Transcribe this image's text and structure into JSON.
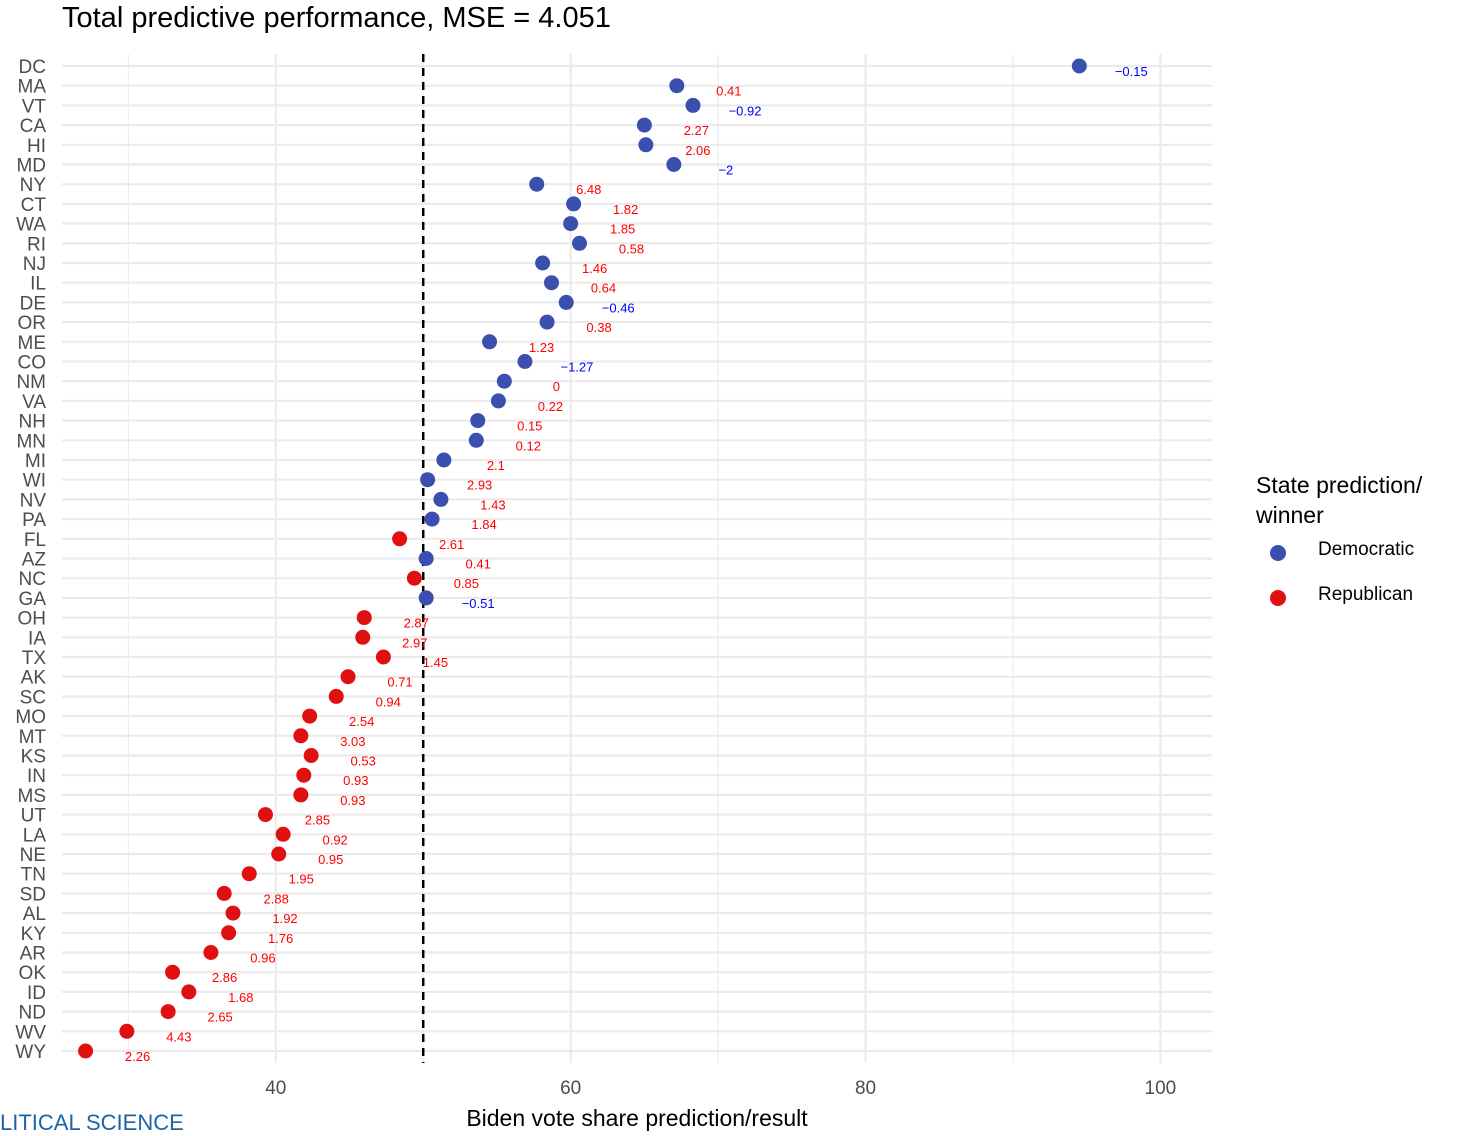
{
  "chart_data": {
    "type": "scatter",
    "title": "Total predictive performance, MSE = 4.051",
    "xlabel": "Biden vote share prediction/result",
    "ylabel": "",
    "xlim": [
      25.5,
      103.5
    ],
    "xticks": [
      40,
      60,
      80,
      100
    ],
    "reference_line": {
      "x": 50,
      "style": "dashed"
    },
    "grid": true,
    "legend": {
      "title": "State prediction/\nwinner",
      "placement": "right",
      "entries": [
        {
          "name": "Democratic",
          "color": "#3a4fae"
        },
        {
          "name": "Republican",
          "color": "#e01010"
        }
      ]
    },
    "label_colors": {
      "positive": "#ff0000",
      "negative": "#0000ff"
    },
    "points": [
      {
        "state": "DC",
        "x": 94.5,
        "party": "Democratic",
        "label": "−0.15",
        "sign": "negative"
      },
      {
        "state": "MA",
        "x": 67.2,
        "party": "Democratic",
        "label": "0.41",
        "sign": "positive"
      },
      {
        "state": "VT",
        "x": 68.3,
        "party": "Democratic",
        "label": "−0.92",
        "sign": "negative"
      },
      {
        "state": "CA",
        "x": 65.0,
        "party": "Democratic",
        "label": "2.27",
        "sign": "positive"
      },
      {
        "state": "HI",
        "x": 65.1,
        "party": "Democratic",
        "label": "2.06",
        "sign": "positive"
      },
      {
        "state": "MD",
        "x": 67.0,
        "party": "Democratic",
        "label": "−2",
        "sign": "negative"
      },
      {
        "state": "NY",
        "x": 57.7,
        "party": "Democratic",
        "label": "6.48",
        "sign": "positive"
      },
      {
        "state": "CT",
        "x": 60.2,
        "party": "Democratic",
        "label": "1.82",
        "sign": "positive"
      },
      {
        "state": "WA",
        "x": 60.0,
        "party": "Democratic",
        "label": "1.85",
        "sign": "positive"
      },
      {
        "state": "RI",
        "x": 60.6,
        "party": "Democratic",
        "label": "0.58",
        "sign": "positive"
      },
      {
        "state": "NJ",
        "x": 58.1,
        "party": "Democratic",
        "label": "1.46",
        "sign": "positive"
      },
      {
        "state": "IL",
        "x": 58.7,
        "party": "Democratic",
        "label": "0.64",
        "sign": "positive"
      },
      {
        "state": "DE",
        "x": 59.7,
        "party": "Democratic",
        "label": "−0.46",
        "sign": "negative"
      },
      {
        "state": "OR",
        "x": 58.4,
        "party": "Democratic",
        "label": "0.38",
        "sign": "positive"
      },
      {
        "state": "ME",
        "x": 54.5,
        "party": "Democratic",
        "label": "1.23",
        "sign": "positive"
      },
      {
        "state": "CO",
        "x": 56.9,
        "party": "Democratic",
        "label": "−1.27",
        "sign": "negative"
      },
      {
        "state": "NM",
        "x": 55.5,
        "party": "Democratic",
        "label": "0",
        "sign": "positive"
      },
      {
        "state": "VA",
        "x": 55.1,
        "party": "Democratic",
        "label": "0.22",
        "sign": "positive"
      },
      {
        "state": "NH",
        "x": 53.7,
        "party": "Democratic",
        "label": "0.15",
        "sign": "positive"
      },
      {
        "state": "MN",
        "x": 53.6,
        "party": "Democratic",
        "label": "0.12",
        "sign": "positive"
      },
      {
        "state": "MI",
        "x": 51.4,
        "party": "Democratic",
        "label": "2.1",
        "sign": "positive"
      },
      {
        "state": "WI",
        "x": 50.3,
        "party": "Democratic",
        "label": "2.93",
        "sign": "positive"
      },
      {
        "state": "NV",
        "x": 51.2,
        "party": "Democratic",
        "label": "1.43",
        "sign": "positive"
      },
      {
        "state": "PA",
        "x": 50.6,
        "party": "Democratic",
        "label": "1.84",
        "sign": "positive"
      },
      {
        "state": "FL",
        "x": 48.4,
        "party": "Republican",
        "label": "2.61",
        "sign": "positive"
      },
      {
        "state": "AZ",
        "x": 50.2,
        "party": "Democratic",
        "label": "0.41",
        "sign": "positive"
      },
      {
        "state": "NC",
        "x": 49.4,
        "party": "Republican",
        "label": "0.85",
        "sign": "positive"
      },
      {
        "state": "GA",
        "x": 50.2,
        "party": "Democratic",
        "label": "−0.51",
        "sign": "negative"
      },
      {
        "state": "OH",
        "x": 46.0,
        "party": "Republican",
        "label": "2.87",
        "sign": "positive"
      },
      {
        "state": "IA",
        "x": 45.9,
        "party": "Republican",
        "label": "2.97",
        "sign": "positive"
      },
      {
        "state": "TX",
        "x": 47.3,
        "party": "Republican",
        "label": "1.45",
        "sign": "positive"
      },
      {
        "state": "AK",
        "x": 44.9,
        "party": "Republican",
        "label": "0.71",
        "sign": "positive"
      },
      {
        "state": "SC",
        "x": 44.1,
        "party": "Republican",
        "label": "0.94",
        "sign": "positive"
      },
      {
        "state": "MO",
        "x": 42.3,
        "party": "Republican",
        "label": "2.54",
        "sign": "positive"
      },
      {
        "state": "MT",
        "x": 41.7,
        "party": "Republican",
        "label": "3.03",
        "sign": "positive"
      },
      {
        "state": "KS",
        "x": 42.4,
        "party": "Republican",
        "label": "0.53",
        "sign": "positive"
      },
      {
        "state": "IN",
        "x": 41.9,
        "party": "Republican",
        "label": "0.93",
        "sign": "positive"
      },
      {
        "state": "MS",
        "x": 41.7,
        "party": "Republican",
        "label": "0.93",
        "sign": "positive"
      },
      {
        "state": "UT",
        "x": 39.3,
        "party": "Republican",
        "label": "2.85",
        "sign": "positive"
      },
      {
        "state": "LA",
        "x": 40.5,
        "party": "Republican",
        "label": "0.92",
        "sign": "positive"
      },
      {
        "state": "NE",
        "x": 40.2,
        "party": "Republican",
        "label": "0.95",
        "sign": "positive"
      },
      {
        "state": "TN",
        "x": 38.2,
        "party": "Republican",
        "label": "1.95",
        "sign": "positive"
      },
      {
        "state": "SD",
        "x": 36.5,
        "party": "Republican",
        "label": "2.88",
        "sign": "positive"
      },
      {
        "state": "AL",
        "x": 37.1,
        "party": "Republican",
        "label": "1.92",
        "sign": "positive"
      },
      {
        "state": "KY",
        "x": 36.8,
        "party": "Republican",
        "label": "1.76",
        "sign": "positive"
      },
      {
        "state": "AR",
        "x": 35.6,
        "party": "Republican",
        "label": "0.96",
        "sign": "positive"
      },
      {
        "state": "OK",
        "x": 33.0,
        "party": "Republican",
        "label": "2.86",
        "sign": "positive"
      },
      {
        "state": "ID",
        "x": 34.1,
        "party": "Republican",
        "label": "1.68",
        "sign": "positive"
      },
      {
        "state": "ND",
        "x": 32.7,
        "party": "Republican",
        "label": "2.65",
        "sign": "positive"
      },
      {
        "state": "WV",
        "x": 29.9,
        "party": "Republican",
        "label": "4.43",
        "sign": "positive"
      },
      {
        "state": "WY",
        "x": 27.1,
        "party": "Republican",
        "label": "2.26",
        "sign": "positive"
      }
    ]
  },
  "footer": {
    "text": "LITICAL SCIENCE"
  }
}
